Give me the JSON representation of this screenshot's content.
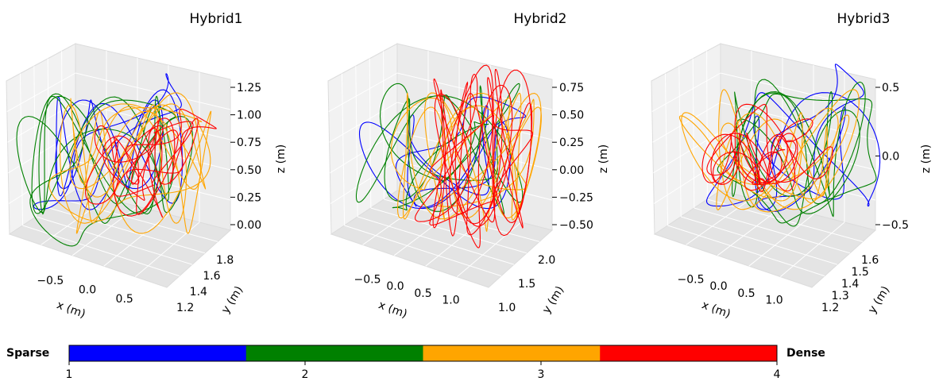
{
  "chart_data": [
    {
      "type": "line3d",
      "title": "Hybrid1",
      "xlabel": "x (m)",
      "ylabel": "y (m)",
      "zlabel": "z (m)",
      "x_ticks": [
        "−0.5",
        "0.0",
        "0.5"
      ],
      "y_ticks": [
        "1.2",
        "1.4",
        "1.6",
        "1.8"
      ],
      "z_ticks": [
        "0.00",
        "0.25",
        "0.50",
        "0.75",
        "1.00",
        "1.25"
      ],
      "xlim": [
        -0.8,
        0.8
      ],
      "ylim": [
        1.1,
        1.9
      ],
      "zlim": [
        0.0,
        1.35
      ]
    },
    {
      "type": "line3d",
      "title": "Hybrid2",
      "xlabel": "x (m)",
      "ylabel": "y (m)",
      "zlabel": "z (m)",
      "x_ticks": [
        "−0.5",
        "0.0",
        "0.5",
        "1.0"
      ],
      "y_ticks": [
        "1.0",
        "1.5",
        "2.0"
      ],
      "z_ticks": [
        "−0.50",
        "−0.25",
        "0.00",
        "0.25",
        "0.50",
        "0.75"
      ],
      "xlim": [
        -0.7,
        1.1
      ],
      "ylim": [
        0.8,
        2.2
      ],
      "zlim": [
        -0.55,
        0.8
      ]
    },
    {
      "type": "line3d",
      "title": "Hybrid3",
      "xlabel": "x (m)",
      "ylabel": "y (m)",
      "zlabel": "z (m)",
      "x_ticks": [
        "−0.5",
        "0.0",
        "0.5",
        "1.0"
      ],
      "y_ticks": [
        "1.2",
        "1.3",
        "1.4",
        "1.5",
        "1.6"
      ],
      "z_ticks": [
        "−0.5",
        "0.0",
        "0.5"
      ],
      "xlim": [
        -0.7,
        1.1
      ],
      "ylim": [
        1.15,
        1.65
      ],
      "zlim": [
        -0.8,
        0.8
      ]
    }
  ],
  "colorbar": {
    "left_label": "Sparse",
    "right_label": "Dense",
    "ticks": [
      "1",
      "2",
      "3",
      "4"
    ],
    "colors": [
      "#0000ff",
      "#008000",
      "#ffa500",
      "#ff0000"
    ]
  }
}
